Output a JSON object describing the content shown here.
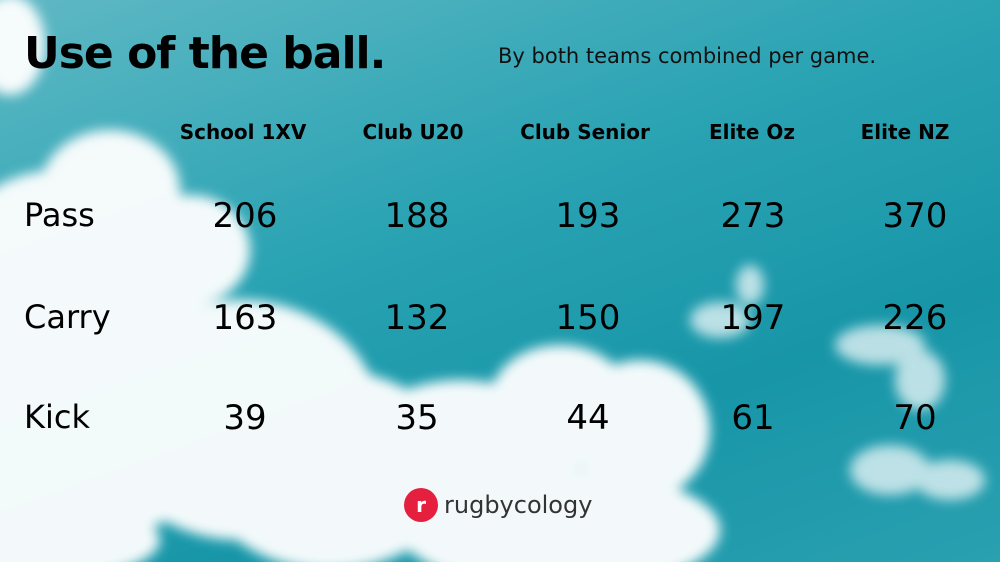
{
  "title": "Use of the ball.",
  "subtitle": "By both teams combined per game.",
  "brand": {
    "mark": "r",
    "name": "rugbycology",
    "mark_color": "#e5203f"
  },
  "chart_data": {
    "type": "table",
    "columns": [
      "School 1XV",
      "Club U20",
      "Club Senior",
      "Elite Oz",
      "Elite NZ"
    ],
    "rows": [
      {
        "label": "Pass",
        "values": [
          206,
          188,
          193,
          273,
          370
        ]
      },
      {
        "label": "Carry",
        "values": [
          163,
          132,
          150,
          197,
          226
        ]
      },
      {
        "label": "Kick",
        "values": [
          39,
          35,
          44,
          61,
          70
        ]
      }
    ]
  }
}
